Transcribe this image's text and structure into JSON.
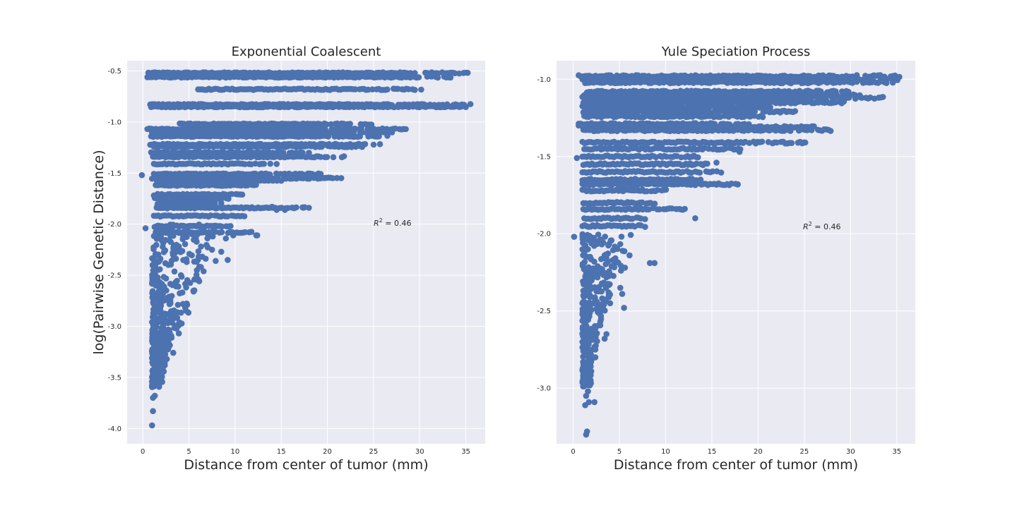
{
  "chart_data": [
    {
      "type": "scatter",
      "title": "Exponential Coalescent",
      "xlabel": "Distance from center of tumor (mm)",
      "ylabel": "log(Pairwise Genetic Distance)",
      "xlim": [
        -1.7,
        37.1
      ],
      "ylim": [
        -4.15,
        -0.4
      ],
      "xticks": [
        0,
        5,
        10,
        15,
        20,
        25,
        30,
        35
      ],
      "yticks": [
        -4.0,
        -3.5,
        -3.0,
        -2.5,
        -2.0,
        -1.5,
        -1.0,
        -0.5
      ],
      "ytick_labels": [
        "-4.0",
        "-3.5",
        "-3.0",
        "-2.5",
        "-2.0",
        "-1.5",
        "-1.0",
        "-0.5"
      ],
      "grid": true,
      "marker_color": "#4c72b0",
      "annotation": {
        "r2_symbol": "R",
        "r2_exponent": "2",
        "r2_value": " = 0.46",
        "x": 25.0,
        "y": -1.97
      },
      "bands": [
        {
          "y": -0.52,
          "x_min": 0.6,
          "x_max": 35.2
        },
        {
          "y": -0.56,
          "x_min": 0.5,
          "x_max": 33.8
        },
        {
          "y": -0.68,
          "x_min": 6.0,
          "x_max": 30.4
        },
        {
          "y": -0.83,
          "x_min": 0.8,
          "x_max": 35.5
        },
        {
          "y": -0.85,
          "x_min": 0.9,
          "x_max": 35.0
        },
        {
          "y": -1.02,
          "x_min": 4.0,
          "x_max": 25.0
        },
        {
          "y": -1.07,
          "x_min": 0.5,
          "x_max": 28.5
        },
        {
          "y": -1.1,
          "x_min": 1.0,
          "x_max": 27.0
        },
        {
          "y": -1.14,
          "x_min": 0.9,
          "x_max": 26.5
        },
        {
          "y": -1.22,
          "x_min": 0.8,
          "x_max": 25.7
        },
        {
          "y": -1.24,
          "x_min": 1.2,
          "x_max": 24.0
        },
        {
          "y": -1.3,
          "x_min": 0.9,
          "x_max": 18.0
        },
        {
          "y": -1.34,
          "x_min": 1.1,
          "x_max": 21.8
        },
        {
          "y": -1.41,
          "x_min": 1.2,
          "x_max": 14.5
        },
        {
          "y": -1.51,
          "x_min": 1.2,
          "x_max": 19.5
        },
        {
          "y": -1.55,
          "x_min": 1.0,
          "x_max": 21.5
        },
        {
          "y": -1.57,
          "x_min": 1.5,
          "x_max": 15.0
        },
        {
          "y": -1.62,
          "x_min": 1.4,
          "x_max": 12.5
        },
        {
          "y": -1.71,
          "x_min": 1.6,
          "x_max": 11.0
        },
        {
          "y": -1.75,
          "x_min": 1.3,
          "x_max": 9.5
        },
        {
          "y": -1.8,
          "x_min": 1.6,
          "x_max": 8.5
        },
        {
          "y": -1.84,
          "x_min": 1.5,
          "x_max": 18.0
        },
        {
          "y": -1.92,
          "x_min": 1.2,
          "x_max": 11.0
        },
        {
          "y": -2.02,
          "x_min": 1.6,
          "x_max": 9.5
        },
        {
          "y": -2.08,
          "x_min": 1.4,
          "x_max": 12.0
        }
      ],
      "points": [
        [
          -0.1,
          -1.52
        ],
        [
          0.3,
          -2.04
        ],
        [
          0.9,
          -1.08
        ],
        [
          1.2,
          -1.72
        ],
        [
          13.2,
          -1.52
        ],
        [
          14.0,
          -1.83
        ],
        [
          16.3,
          -1.84
        ],
        [
          12.3,
          -2.11
        ],
        [
          14.5,
          -1.86
        ],
        [
          17.4,
          -1.84
        ],
        [
          18.0,
          -1.84
        ],
        [
          15.4,
          -1.86
        ],
        [
          9.0,
          -2.14
        ],
        [
          9.8,
          -2.11
        ],
        [
          12.4,
          -2.11
        ],
        [
          7.5,
          -2.25
        ],
        [
          8.5,
          -2.27
        ],
        [
          9.2,
          -2.35
        ],
        [
          7.9,
          -2.36
        ],
        [
          6.3,
          -2.42
        ],
        [
          5.6,
          -2.54
        ],
        [
          6.0,
          -2.54
        ],
        [
          4.7,
          -2.62
        ],
        [
          5.5,
          -2.66
        ],
        [
          4.8,
          -2.79
        ],
        [
          3.8,
          -2.79
        ],
        [
          4.6,
          -2.82
        ],
        [
          3.4,
          -2.87
        ],
        [
          3.9,
          -3.07
        ],
        [
          2.6,
          -3.1
        ],
        [
          2.4,
          -2.9
        ],
        [
          2.1,
          -3.01
        ],
        [
          2.5,
          -3.15
        ],
        [
          3.3,
          -3.26
        ],
        [
          2.6,
          -3.32
        ],
        [
          1.8,
          -3.44
        ],
        [
          1.9,
          -3.5
        ],
        [
          1.7,
          -3.58
        ],
        [
          1.3,
          -3.68
        ],
        [
          1.1,
          -3.7
        ],
        [
          1.1,
          -3.83
        ],
        [
          1.0,
          -3.97
        ],
        [
          1.5,
          -3.25
        ],
        [
          1.0,
          -3.31
        ],
        [
          2.9,
          -2.76
        ]
      ],
      "cluster_envelope": [
        [
          -2.0,
          1.1,
          8.0
        ],
        [
          -2.3,
          1.0,
          7.5
        ],
        [
          -2.6,
          1.0,
          6.2
        ],
        [
          -2.9,
          1.0,
          4.8
        ],
        [
          -3.1,
          1.0,
          3.2
        ],
        [
          -3.3,
          1.0,
          2.6
        ],
        [
          -3.6,
          1.0,
          2.0
        ]
      ]
    },
    {
      "type": "scatter",
      "title": "Yule Speciation Process",
      "xlabel": "Distance from center of tumor (mm)",
      "ylabel": "",
      "xlim": [
        -1.8,
        37.0
      ],
      "ylim": [
        -3.36,
        -0.88
      ],
      "xticks": [
        0,
        5,
        10,
        15,
        20,
        25,
        30,
        35
      ],
      "yticks": [
        -3.0,
        -2.5,
        -2.0,
        -1.5,
        -1.0
      ],
      "ytick_labels": [
        "-3.0",
        "-2.5",
        "-2.0",
        "-1.5",
        "-1.0"
      ],
      "grid": true,
      "marker_color": "#4c72b0",
      "annotation": {
        "r2_symbol": "R",
        "r2_exponent": "2",
        "r2_value": " = 0.46",
        "x": 25.0,
        "y": -1.97
      },
      "bands": [
        {
          "y": -0.98,
          "x_min": 0.6,
          "x_max": 35.5
        },
        {
          "y": -1.0,
          "x_min": 1.0,
          "x_max": 35.3
        },
        {
          "y": -1.02,
          "x_min": 1.3,
          "x_max": 34.8
        },
        {
          "y": -1.08,
          "x_min": 1.5,
          "x_max": 30.0
        },
        {
          "y": -1.1,
          "x_min": 1.2,
          "x_max": 31.0
        },
        {
          "y": -1.12,
          "x_min": 1.0,
          "x_max": 33.5
        },
        {
          "y": -1.15,
          "x_min": 1.1,
          "x_max": 29.5
        },
        {
          "y": -1.18,
          "x_min": 1.0,
          "x_max": 22.0
        },
        {
          "y": -1.21,
          "x_min": 1.1,
          "x_max": 24.0
        },
        {
          "y": -1.24,
          "x_min": 1.2,
          "x_max": 20.5
        },
        {
          "y": -1.29,
          "x_min": 0.6,
          "x_max": 19.0
        },
        {
          "y": -1.31,
          "x_min": 1.1,
          "x_max": 26.5
        },
        {
          "y": -1.33,
          "x_min": 1.1,
          "x_max": 28.3
        },
        {
          "y": -1.41,
          "x_min": 1.0,
          "x_max": 25.0
        },
        {
          "y": -1.45,
          "x_min": 1.2,
          "x_max": 18.3
        },
        {
          "y": -1.5,
          "x_min": 1.0,
          "x_max": 13.5
        },
        {
          "y": -1.55,
          "x_min": 1.1,
          "x_max": 14.5
        },
        {
          "y": -1.6,
          "x_min": 1.0,
          "x_max": 16.0
        },
        {
          "y": -1.65,
          "x_min": 1.0,
          "x_max": 14.0
        },
        {
          "y": -1.68,
          "x_min": 1.0,
          "x_max": 17.8
        },
        {
          "y": -1.72,
          "x_min": 1.0,
          "x_max": 10.5
        },
        {
          "y": -1.8,
          "x_min": 1.1,
          "x_max": 9.5
        },
        {
          "y": -1.84,
          "x_min": 1.1,
          "x_max": 12.3
        },
        {
          "y": -1.9,
          "x_min": 1.2,
          "x_max": 8.0
        },
        {
          "y": -1.95,
          "x_min": 1.0,
          "x_max": 8.0
        }
      ],
      "points": [
        [
          0.1,
          -2.02
        ],
        [
          0.4,
          -1.51
        ],
        [
          0.6,
          -1.3
        ],
        [
          13.2,
          -1.9
        ],
        [
          11.5,
          -1.84
        ],
        [
          14.6,
          -1.6
        ],
        [
          15.5,
          -1.54
        ],
        [
          18.0,
          -1.47
        ],
        [
          25.1,
          -1.41
        ],
        [
          17.8,
          -1.68
        ],
        [
          8.8,
          -2.19
        ],
        [
          8.3,
          -2.19
        ],
        [
          6.1,
          -2.14
        ],
        [
          5.6,
          -2.22
        ],
        [
          5.1,
          -2.35
        ],
        [
          5.5,
          -2.48
        ],
        [
          5.3,
          -2.39
        ],
        [
          4.0,
          -2.45
        ],
        [
          3.6,
          -2.65
        ],
        [
          3.4,
          -2.68
        ],
        [
          2.4,
          -2.75
        ],
        [
          2.4,
          -2.8
        ],
        [
          1.9,
          -2.86
        ],
        [
          1.8,
          -2.9
        ],
        [
          1.3,
          -2.86
        ],
        [
          1.3,
          -2.93
        ],
        [
          1.6,
          -3.02
        ],
        [
          1.4,
          -3.05
        ],
        [
          1.7,
          -3.09
        ],
        [
          2.3,
          -3.09
        ],
        [
          1.3,
          -3.11
        ],
        [
          1.5,
          -3.28
        ],
        [
          1.4,
          -3.3
        ],
        [
          1.0,
          -2.52
        ],
        [
          1.1,
          -2.4
        ]
      ],
      "cluster_envelope": [
        [
          -2.0,
          1.0,
          6.5
        ],
        [
          -2.2,
          1.0,
          5.5
        ],
        [
          -2.4,
          1.0,
          4.0
        ],
        [
          -2.6,
          1.0,
          3.0
        ],
        [
          -2.8,
          1.0,
          2.2
        ],
        [
          -3.0,
          1.0,
          1.9
        ]
      ]
    }
  ]
}
